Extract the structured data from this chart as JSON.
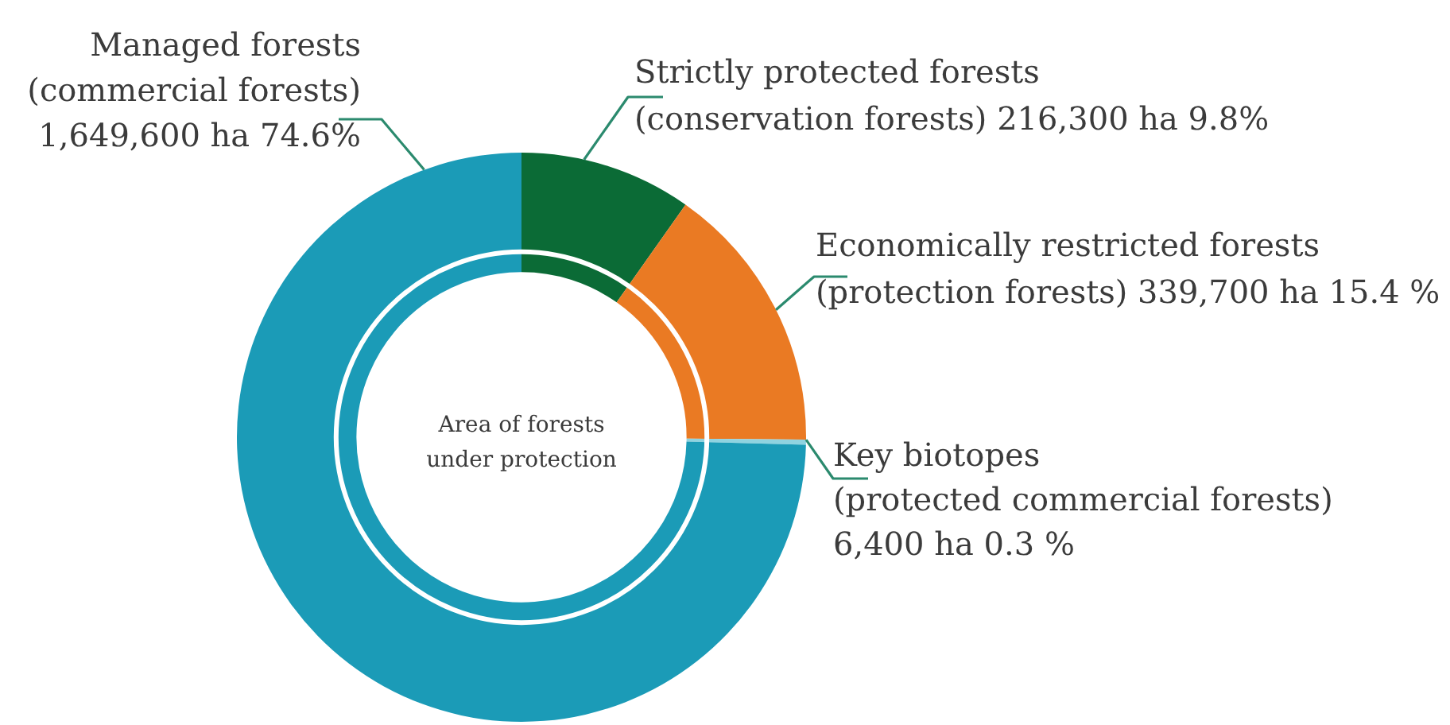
{
  "chart_data": {
    "type": "donut",
    "title": "Area of forests under protection",
    "categories": [
      "Strictly protected forests (conservation forests)",
      "Economically restricted forests (protection forests)",
      "Key biotopes (protected commercial forests)",
      "Managed forests (commercial forests)"
    ],
    "values": [
      216300,
      339700,
      6400,
      1649600
    ],
    "colors": [
      "#0b6b36",
      "#ea7a23",
      "#8fd3e0",
      "#1b9bb7"
    ],
    "value_labels": [
      "216,300 ha 9.8%",
      "339,700 ha 15.4 %",
      "6,400 ha 0.3 %",
      "1,649,600 ha 74.6%"
    ]
  }
}
